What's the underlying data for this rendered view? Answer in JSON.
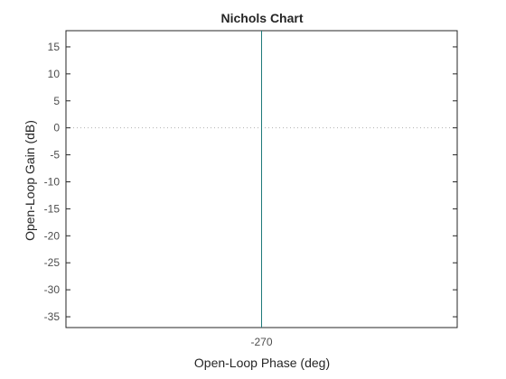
{
  "chart_data": {
    "type": "line",
    "title": "Nichols Chart",
    "xlabel": "Open-Loop Phase (deg)",
    "ylabel": "Open-Loop Gain (dB)",
    "xlim": [
      -270.5,
      -269.5
    ],
    "ylim": [
      -37,
      18
    ],
    "x_ticks": [
      -270
    ],
    "x_tick_labels": [
      "-270"
    ],
    "y_ticks": [
      15,
      10,
      5,
      0,
      -5,
      -10,
      -15,
      -20,
      -25,
      -30,
      -35
    ],
    "y_tick_labels": [
      "15",
      "10",
      "5",
      "0",
      "-5",
      "-10",
      "-15",
      "-20",
      "-25",
      "-30",
      "-35"
    ],
    "grid": false,
    "reference_line": {
      "y": 0,
      "style": "dotted"
    },
    "series": [
      {
        "x": [
          -270,
          -270
        ],
        "y": [
          -37,
          18
        ],
        "color": "#1f7a7a"
      }
    ]
  }
}
